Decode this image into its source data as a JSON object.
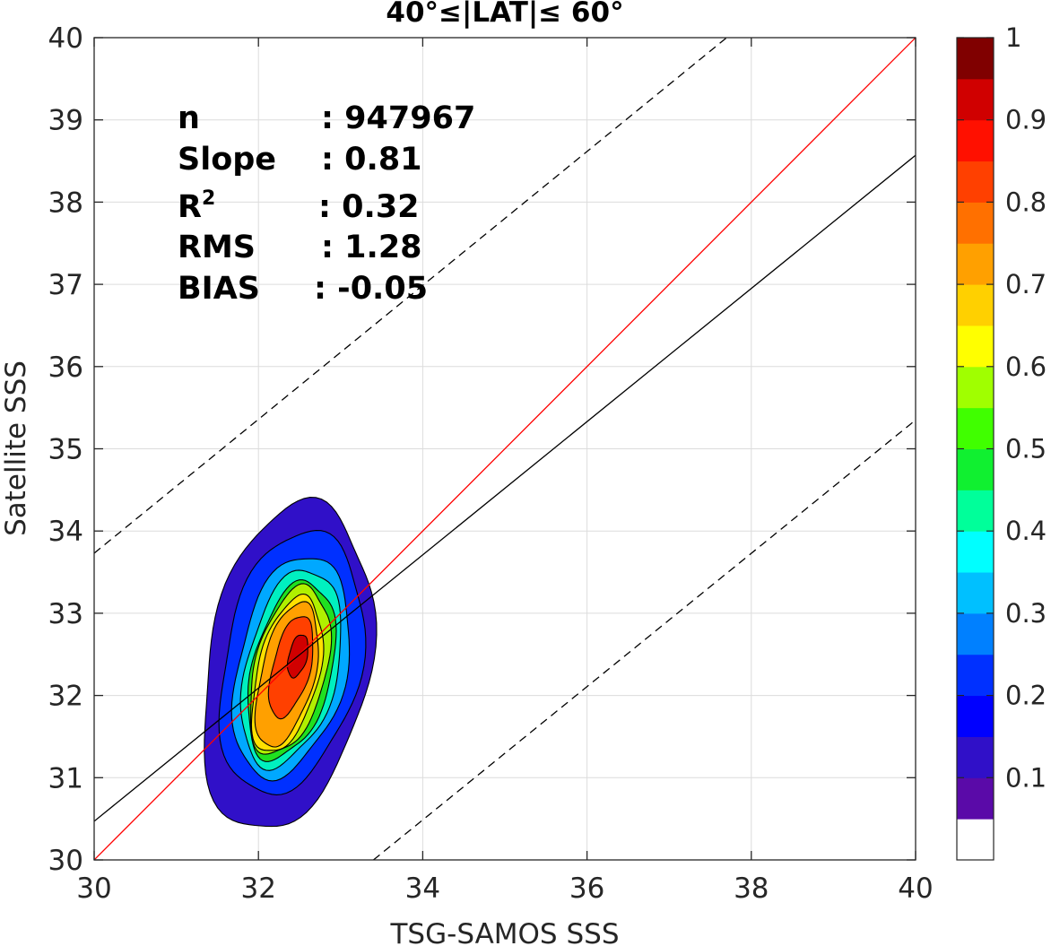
{
  "chart_data": {
    "type": "contour",
    "title": "40°≤|LAT|≤ 60°",
    "xlabel": "TSG-SAMOS SSS",
    "ylabel": "Satellite SSS",
    "xlim": [
      30,
      40
    ],
    "ylim": [
      30,
      40
    ],
    "xticks": [
      "30",
      "32",
      "34",
      "36",
      "38",
      "40"
    ],
    "yticks": [
      "30",
      "31",
      "32",
      "33",
      "34",
      "35",
      "36",
      "37",
      "38",
      "39",
      "40"
    ],
    "grid": true,
    "stats": [
      {
        "label": "n",
        "value": ": 947967"
      },
      {
        "label": "Slope",
        "value": ": 0.81"
      },
      {
        "label": "R",
        "sup": "2",
        "value": ": 0.32"
      },
      {
        "label": "RMS",
        "value": ": 1.28"
      },
      {
        "label": "BIAS",
        "value": ": -0.05"
      }
    ],
    "lines": [
      {
        "kind": "one-to-one",
        "color": "#ff0000",
        "style": "solid",
        "x": [
          30,
          40
        ],
        "y": [
          30,
          40
        ]
      },
      {
        "kind": "regression",
        "color": "#000000",
        "style": "solid",
        "x": [
          30,
          40
        ],
        "y": [
          30.47,
          38.57
        ]
      },
      {
        "kind": "upper-bound",
        "color": "#000000",
        "style": "dashed",
        "x": [
          30,
          37.7
        ],
        "y": [
          33.73,
          40
        ]
      },
      {
        "kind": "lower-bound",
        "color": "#000000",
        "style": "dashed",
        "x": [
          33.4,
          40
        ],
        "y": [
          30,
          35.35
        ]
      }
    ],
    "density_levels": [
      0.1,
      0.2,
      0.3,
      0.4,
      0.5,
      0.6,
      0.7,
      0.8,
      0.9
    ],
    "density_peak": {
      "x": 32.5,
      "y": 32.45
    },
    "contours": [
      {
        "level": 0.05,
        "cx": 32.35,
        "cy": 32.35,
        "rx": 1.1,
        "ry": 2.0,
        "tilt": 0.45,
        "color": "#3010c8"
      },
      {
        "level": 0.15,
        "cx": 32.4,
        "cy": 32.4,
        "rx": 0.95,
        "ry": 1.6,
        "tilt": 0.5,
        "color": "#0030ff"
      },
      {
        "level": 0.25,
        "cx": 32.4,
        "cy": 32.35,
        "rx": 0.78,
        "ry": 1.35,
        "tilt": 0.55,
        "color": "#00a8ff"
      },
      {
        "level": 0.35,
        "cx": 32.4,
        "cy": 32.33,
        "rx": 0.68,
        "ry": 1.2,
        "tilt": 0.6,
        "color": "#00f0c0"
      },
      {
        "level": 0.45,
        "cx": 32.4,
        "cy": 32.3,
        "rx": 0.6,
        "ry": 1.08,
        "tilt": 0.62,
        "color": "#20e020"
      },
      {
        "level": 0.55,
        "cx": 32.38,
        "cy": 32.3,
        "rx": 0.55,
        "ry": 1.02,
        "tilt": 0.64,
        "color": "#b0f000"
      },
      {
        "level": 0.65,
        "cx": 32.35,
        "cy": 32.25,
        "rx": 0.48,
        "ry": 0.95,
        "tilt": 0.66,
        "color": "#ffe000"
      },
      {
        "level": 0.75,
        "cx": 32.35,
        "cy": 32.25,
        "rx": 0.42,
        "ry": 0.88,
        "tilt": 0.68,
        "color": "#ffa000"
      },
      {
        "level": 0.85,
        "cx": 32.4,
        "cy": 32.35,
        "rx": 0.3,
        "ry": 0.62,
        "tilt": 0.7,
        "color": "#ff4000"
      },
      {
        "level": 0.9,
        "cx": 32.48,
        "cy": 32.48,
        "rx": 0.14,
        "ry": 0.26,
        "tilt": 0.65,
        "color": "#d00000"
      }
    ],
    "colorbar": {
      "min": 0,
      "max": 1,
      "ticks": [
        "0.1",
        "0.2",
        "0.3",
        "0.4",
        "0.5",
        "0.6",
        "0.7",
        "0.8",
        "0.9",
        "1"
      ],
      "tick_values": [
        0.1,
        0.2,
        0.3,
        0.4,
        0.5,
        0.6,
        0.7,
        0.8,
        0.9,
        1.0
      ],
      "colors": [
        "#ffffff",
        "#5a0aa8",
        "#3010c8",
        "#0000ff",
        "#0030ff",
        "#0080ff",
        "#00c0ff",
        "#00ffff",
        "#00ff9a",
        "#10f030",
        "#40ff00",
        "#a0ff00",
        "#ffff00",
        "#ffd000",
        "#ffa000",
        "#ff7000",
        "#ff4000",
        "#ff1000",
        "#d00000",
        "#800000"
      ]
    }
  }
}
